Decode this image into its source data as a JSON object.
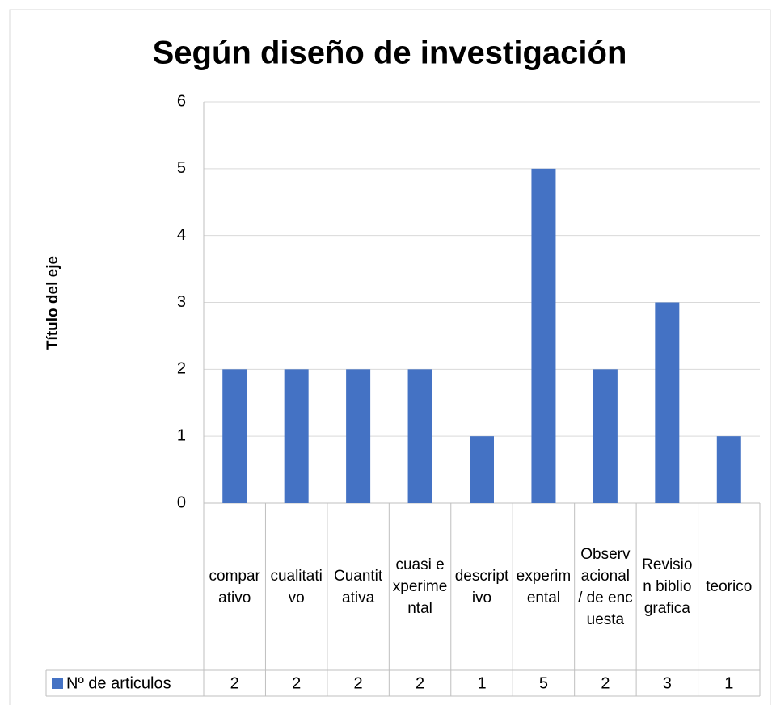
{
  "chart_data": {
    "type": "bar",
    "title": "Según diseño de investigación",
    "y_axis_label": "Título del eje",
    "categories": [
      "comparativo",
      "cualitativo",
      "Cuantitativa",
      "cuasi experimental",
      "descriptivo",
      "experimental",
      "Observacional / de encuesta",
      "Revision bibliografica",
      "teorico"
    ],
    "series": [
      {
        "name": "Nº de articulos",
        "color": "#4472c4",
        "values": [
          2,
          2,
          2,
          2,
          1,
          5,
          2,
          3,
          1
        ]
      }
    ],
    "ylim": [
      0,
      6
    ],
    "yticks": [
      0,
      1,
      2,
      3,
      4,
      5,
      6
    ],
    "grid": true,
    "legend": "data-table"
  }
}
